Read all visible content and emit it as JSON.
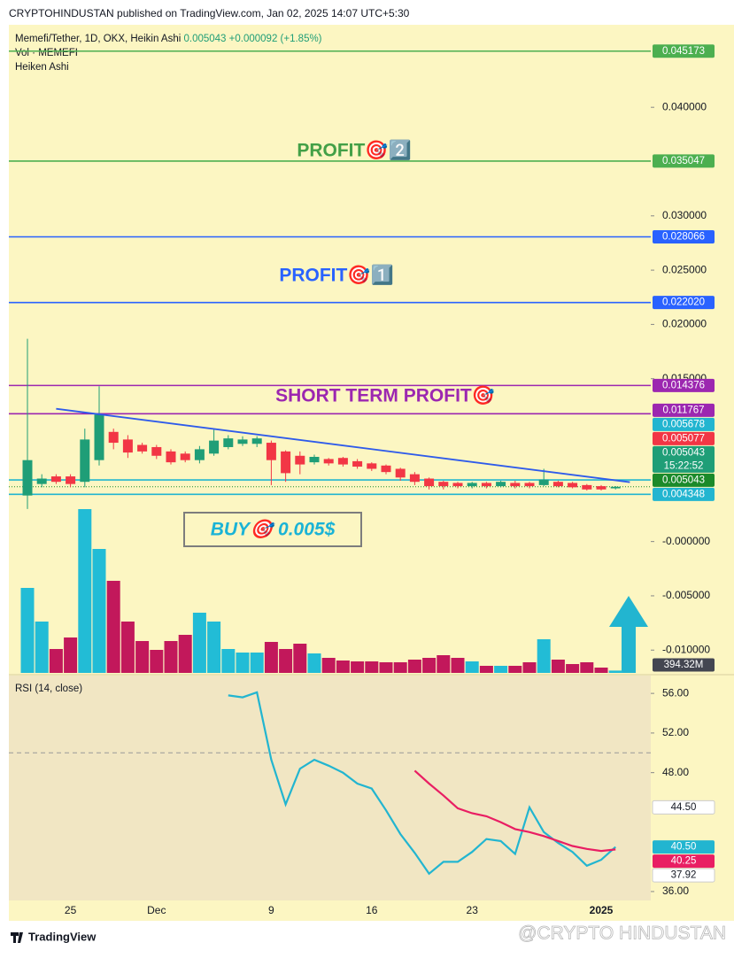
{
  "header": "CRYPTOHINDUSTAN published on TradingView.com, Jan 02, 2025 14:07 UTC+5:30",
  "footer": {
    "brand": "TradingView",
    "watermark": "@CRYPTO HINDUSTAN"
  },
  "annotations": {
    "profit_2": "PROFIT🎯2️⃣",
    "profit_1": "PROFIT🎯1️⃣",
    "short_term": "SHORT TERM PROFIT🎯",
    "buy": "BUY🎯 0.005$"
  },
  "chart_data": [
    {
      "type": "candlestick",
      "title": "Memefi/Tether, 1D, OKX, Heikin Ashi",
      "last_value": 0.005043,
      "change": "+0.000092 (+1.85%)",
      "indicator": "Heiken Ashi",
      "categories": [
        null,
        null,
        null,
        "25",
        null,
        null,
        null,
        null,
        null,
        "Dec",
        null,
        null,
        null,
        null,
        null,
        null,
        null,
        "9",
        null,
        null,
        null,
        null,
        null,
        null,
        "16",
        null,
        null,
        null,
        null,
        null,
        null,
        "23",
        null,
        null,
        null,
        null,
        null,
        null,
        null,
        null,
        "2025",
        null
      ],
      "open": [
        0.00424,
        0.0053,
        0.006,
        0.006,
        0.0055,
        0.0075,
        0.0101,
        0.0094,
        0.0089,
        0.0087,
        0.0083,
        0.0081,
        0.0075,
        0.0081,
        0.0087,
        0.009,
        0.009,
        0.0091,
        0.0083,
        0.0079,
        0.0073,
        0.0076,
        0.0077,
        0.0074,
        0.0072,
        0.007,
        0.0067,
        0.0062,
        0.0058,
        0.0055,
        0.0054,
        0.0051,
        0.0054,
        0.0051,
        0.0054,
        0.0054,
        0.0052,
        0.0055,
        0.0054,
        0.0052,
        0.0051,
        0.0049
      ],
      "high": [
        0.01868,
        0.0062,
        0.0062,
        0.0062,
        0.0104,
        0.0143,
        0.0104,
        0.0098,
        0.0091,
        0.0089,
        0.0085,
        0.0083,
        0.0088,
        0.0103,
        0.0098,
        0.0097,
        0.0097,
        0.0093,
        0.0084,
        0.0083,
        0.008,
        0.0077,
        0.0078,
        0.0076,
        0.0073,
        0.0071,
        0.0068,
        0.0064,
        0.0059,
        0.0056,
        0.0055,
        0.0055,
        0.0055,
        0.0056,
        0.0056,
        0.0055,
        0.0067,
        0.0056,
        0.0055,
        0.0053,
        0.0052,
        0.0051
      ],
      "low": [
        0.003,
        0.005,
        0.0053,
        0.005,
        0.005,
        0.007,
        0.0085,
        0.0077,
        0.0081,
        0.0076,
        0.0071,
        0.0073,
        0.0072,
        0.0079,
        0.0085,
        0.0088,
        0.0087,
        0.0052,
        0.0055,
        0.0062,
        0.0071,
        0.007,
        0.0069,
        0.0067,
        0.0065,
        0.0062,
        0.0056,
        0.0052,
        0.0048,
        0.0048,
        0.0049,
        0.0049,
        0.0049,
        0.005,
        0.0049,
        0.0049,
        0.0051,
        0.005,
        0.0049,
        0.0047,
        0.0047,
        0.0048
      ],
      "close": [
        0.0075,
        0.0058,
        0.0055,
        0.0053,
        0.0094,
        0.0117,
        0.0091,
        0.0082,
        0.0083,
        0.0079,
        0.0073,
        0.0075,
        0.0085,
        0.0093,
        0.0095,
        0.0094,
        0.0095,
        0.0075,
        0.0063,
        0.0071,
        0.0078,
        0.0072,
        0.0071,
        0.0069,
        0.0067,
        0.0064,
        0.0059,
        0.0055,
        0.0051,
        0.0051,
        0.0051,
        0.0054,
        0.0051,
        0.0055,
        0.0051,
        0.0051,
        0.0057,
        0.0051,
        0.005,
        0.0048,
        0.0048,
        0.005043
      ],
      "up_color": "#1f9e77",
      "down_color": "#f23645",
      "ylim": [
        -0.0121,
        0.0476
      ],
      "yticks": [
        {
          "value": 0.04,
          "label": "0.040000"
        },
        {
          "value": 0.03,
          "label": "0.030000"
        },
        {
          "value": 0.025,
          "label": "0.025000"
        },
        {
          "value": 0.02,
          "label": "0.020000"
        },
        {
          "value": 0.015,
          "label": "0.015000"
        },
        {
          "value": 0,
          "label": "-0.000000"
        },
        {
          "value": -0.005,
          "label": "-0.005000"
        },
        {
          "value": -0.01,
          "label": "-0.010000"
        }
      ],
      "levels": {
        "values": [
          0.045173,
          0.035047,
          0.028066,
          0.02202,
          0.014376,
          0.011767,
          0.005678,
          0.004348
        ],
        "value_labels": [
          "0.045173",
          "0.035047",
          "0.028066",
          "0.022020",
          "0.014376",
          "0.011767",
          "0.005678",
          "0.004348"
        ],
        "colors": [
          "#4caf50",
          "#4caf50",
          "#2962ff",
          "#2962ff",
          "#9c27b0",
          "#9c27b0",
          "#22b5d0",
          "#22b5d0"
        ]
      },
      "markers": {
        "values": [
          0.005077,
          0.005043,
          0.005043
        ],
        "colors": [
          "#f23645",
          "#1f9e77",
          "#1b8a2a"
        ],
        "countdown": "15:22:52"
      },
      "trendline": {
        "x": [
          2,
          42
        ],
        "y": [
          0.01223,
          0.00547
        ],
        "color": "#2f5bea"
      }
    },
    {
      "type": "bar",
      "title": "Vol · MEMEFI",
      "values": [
        14400,
        8700,
        4050,
        6000,
        27750,
        21000,
        15600,
        8700,
        5400,
        3900,
        5400,
        6450,
        10200,
        8700,
        4050,
        3450,
        3450,
        5250,
        4050,
        4950,
        3300,
        2550,
        2100,
        1950,
        1950,
        1800,
        1800,
        2250,
        2550,
        3000,
        2550,
        1950,
        1200,
        1200,
        1200,
        1800,
        5700,
        2250,
        1500,
        1800,
        900,
        394.32
      ],
      "last_value_label": "394.32M",
      "up_color": "#22bcd6",
      "down_color": "#c2185b",
      "ylim": [
        0,
        30000
      ]
    },
    {
      "type": "line",
      "title": "RSI (14, close)",
      "series": [
        {
          "color": "#22b5d0",
          "values": [
            null,
            null,
            null,
            null,
            null,
            null,
            null,
            null,
            null,
            null,
            null,
            null,
            null,
            null,
            55.8,
            55.6,
            56.1,
            49.3,
            44.8,
            48.4,
            49.3,
            48.7,
            48.0,
            46.9,
            46.4,
            44.2,
            41.8,
            39.9,
            37.8,
            39.0,
            39.0,
            40.0,
            41.3,
            41.1,
            39.8,
            44.5,
            42.0,
            40.9,
            40.0,
            38.6,
            39.2,
            40.5
          ]
        },
        {
          "color": "#e91e63",
          "values": [
            null,
            null,
            null,
            null,
            null,
            null,
            null,
            null,
            null,
            null,
            null,
            null,
            null,
            null,
            null,
            null,
            null,
            null,
            null,
            null,
            null,
            null,
            null,
            null,
            null,
            null,
            null,
            48.2,
            46.9,
            45.7,
            44.4,
            43.9,
            43.6,
            43.0,
            42.3,
            42.0,
            41.6,
            41.1,
            40.6,
            40.3,
            40.1,
            40.25
          ]
        }
      ],
      "ylim": [
        35.1,
        57.8
      ],
      "yticks": [
        {
          "value": 56,
          "label": "56.00"
        },
        {
          "value": 52,
          "label": "52.00"
        },
        {
          "value": 48,
          "label": "48.00"
        },
        {
          "value": 36,
          "label": "36.00"
        }
      ],
      "midline": 50,
      "markers": {
        "values": [
          44.5,
          40.5,
          40.25,
          37.92
        ],
        "value_labels": [
          "44.50",
          "40.50",
          "40.25",
          "37.92"
        ],
        "colors": [
          "#ffffff",
          "#22b5d0",
          "#e91e63",
          "#ffffff"
        ]
      }
    }
  ]
}
